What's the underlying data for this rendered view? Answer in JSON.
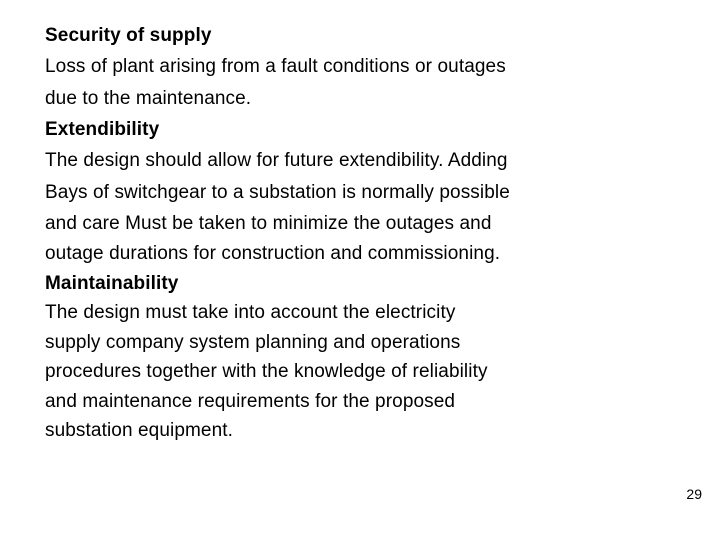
{
  "slide": {
    "heading1": "Security of supply",
    "para1_line1": "Loss of plant arising from a fault conditions or outages",
    "para1_line2": "due to the maintenance.",
    "heading2": "Extendibility",
    "para2_line1": "The design should allow for future extendibility. Adding",
    "para2_line2": "Bays of switchgear to a substation is normally possible",
    "para2_line3": "and care Must be taken to minimize the outages and",
    "para2_line4": "outage durations for construction and commissioning.",
    "heading3": "Maintainability",
    "para3_line1": "The design must take into account the electricity",
    "para3_line2": "supply company system planning and operations",
    "para3_line3": "procedures together with the knowledge of reliability",
    "para3_line4": "and maintenance requirements for the proposed",
    "para3_line5": "substation equipment.",
    "page_number": "29"
  },
  "style": {
    "background_color": "#ffffff",
    "text_color": "#000000",
    "body_fontsize": 19,
    "pagenum_fontsize": 14,
    "font_family": "Arial"
  }
}
